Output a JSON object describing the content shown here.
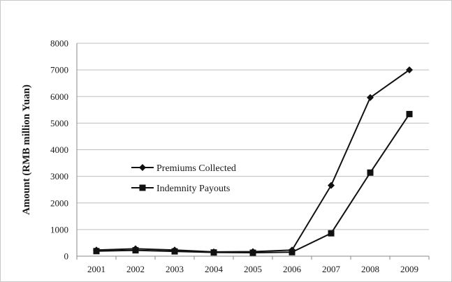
{
  "chart_data": {
    "type": "line",
    "title": "",
    "xlabel": "",
    "ylabel": "Amount (RMB million Yuan)",
    "categories": [
      "2001",
      "2002",
      "2003",
      "2004",
      "2005",
      "2006",
      "2007",
      "2008",
      "2009"
    ],
    "ylim": [
      0,
      8000
    ],
    "yticks": [
      "0",
      "1000",
      "2000",
      "3000",
      "4000",
      "5000",
      "6000",
      "7000",
      "8000"
    ],
    "grid": true,
    "legend_position": "center-left",
    "series": [
      {
        "name": "Premiums Collected",
        "marker": "diamond",
        "color": "#111111",
        "values": [
          230,
          280,
          230,
          160,
          170,
          230,
          2660,
          5960,
          7000
        ]
      },
      {
        "name": "Indemnity Payouts",
        "marker": "square",
        "color": "#111111",
        "values": [
          190,
          220,
          180,
          140,
          130,
          150,
          860,
          3140,
          5340
        ]
      }
    ]
  }
}
